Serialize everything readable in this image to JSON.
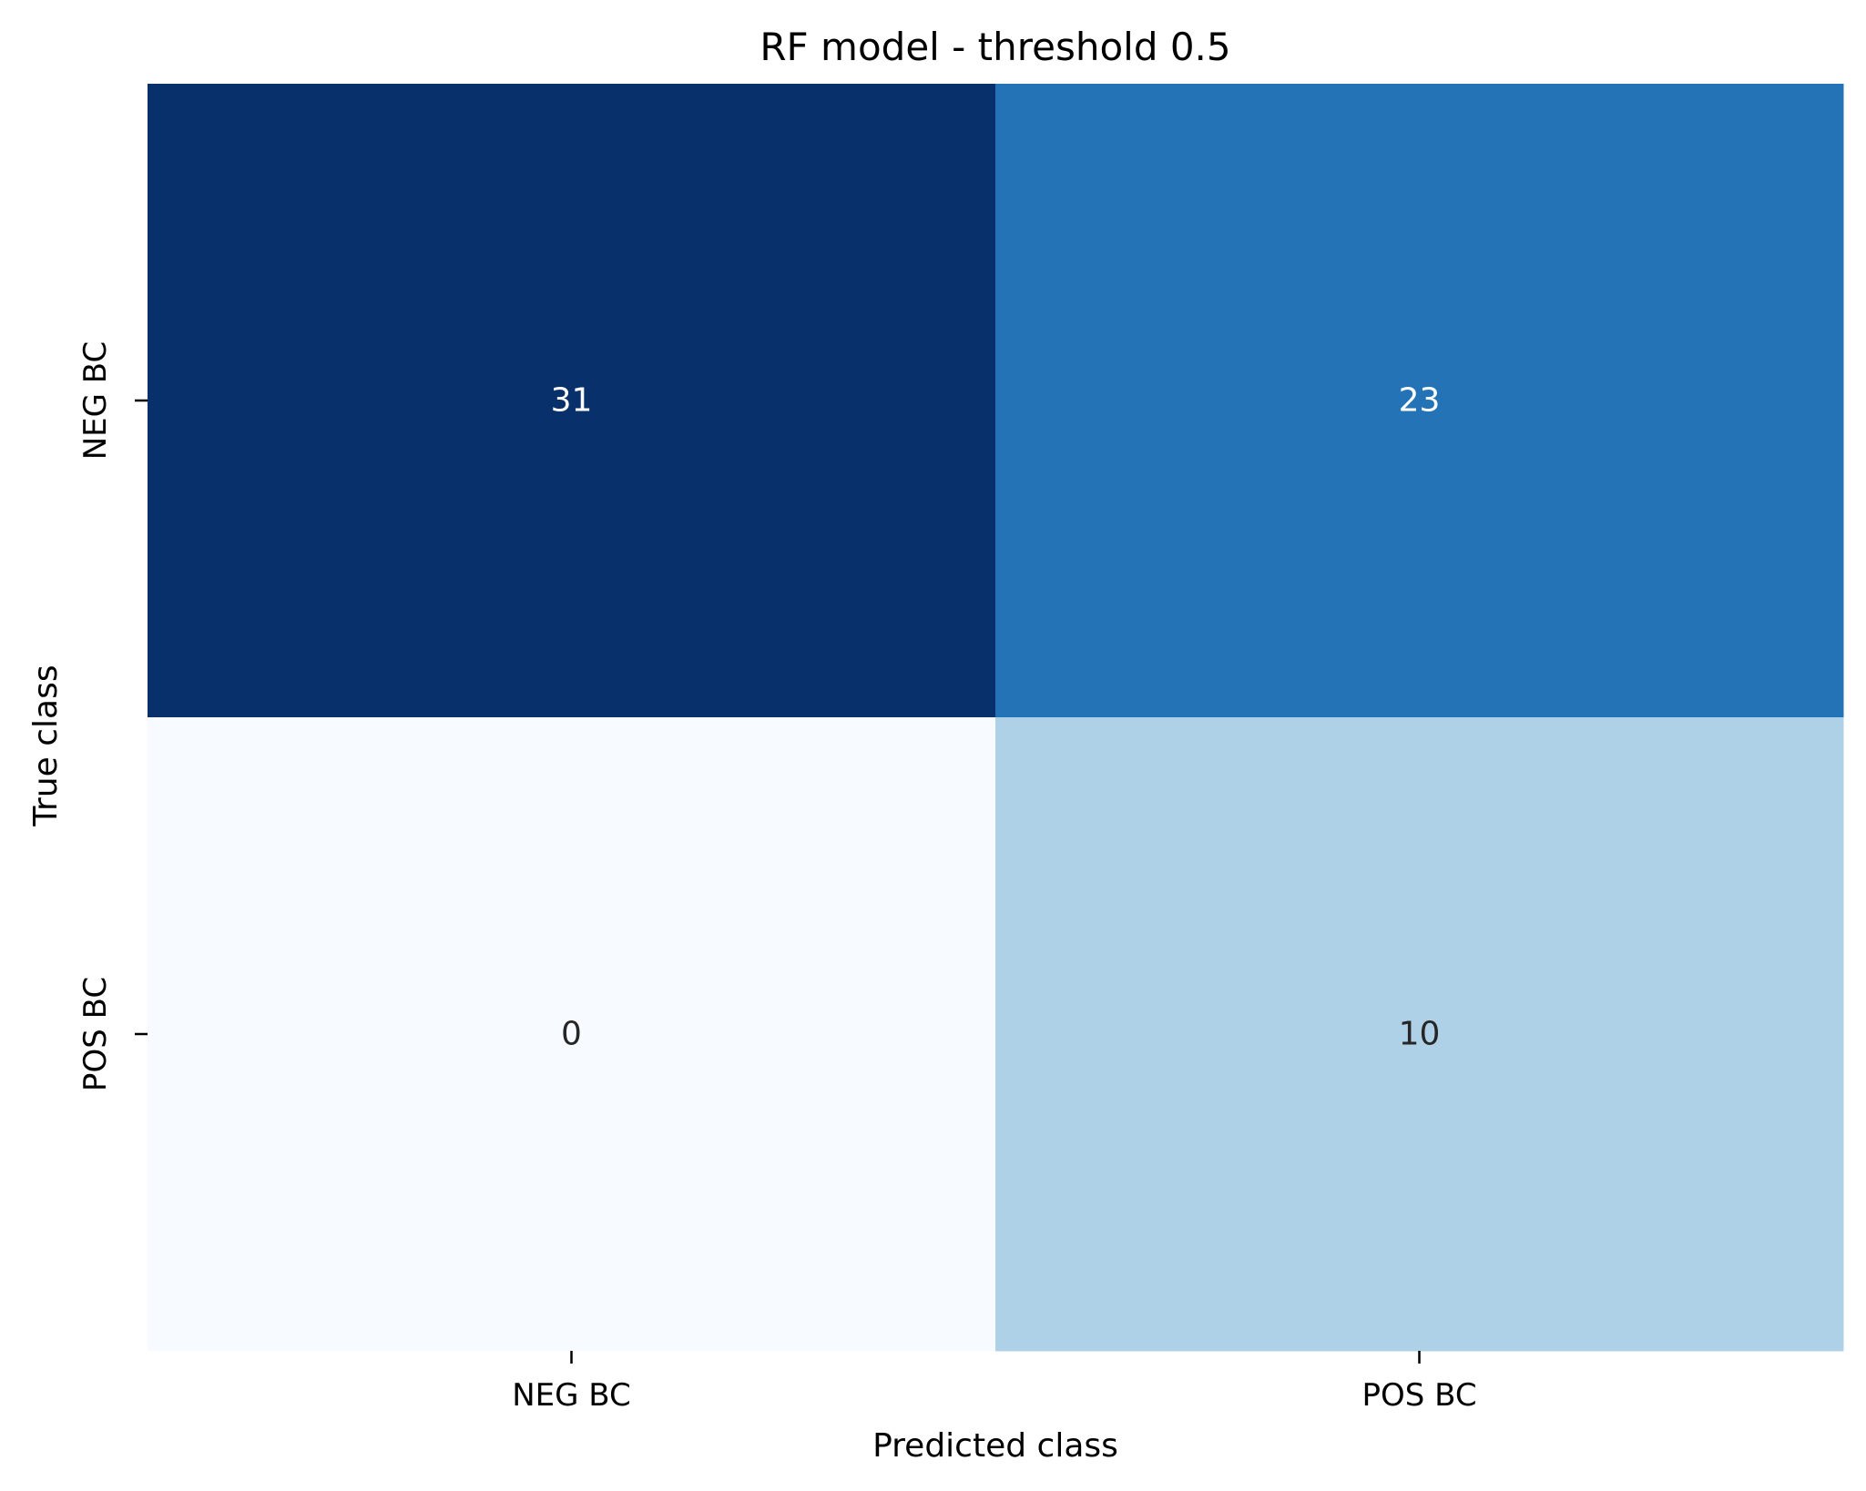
{
  "chart_data": {
    "type": "heatmap",
    "title": "RF model - threshold 0.5",
    "xlabel": "Predicted class",
    "ylabel": "True class",
    "x_categories": [
      "NEG BC",
      "POS BC"
    ],
    "y_categories": [
      "NEG BC",
      "POS BC"
    ],
    "values": [
      [
        31,
        23
      ],
      [
        0,
        10
      ]
    ],
    "colormap": "Blues",
    "colors": {
      "low": "#f7fbff",
      "high": "#08306b",
      "text_light": "#ffffff",
      "text_dark": "#262626"
    },
    "colorbar": false,
    "grid": false
  }
}
